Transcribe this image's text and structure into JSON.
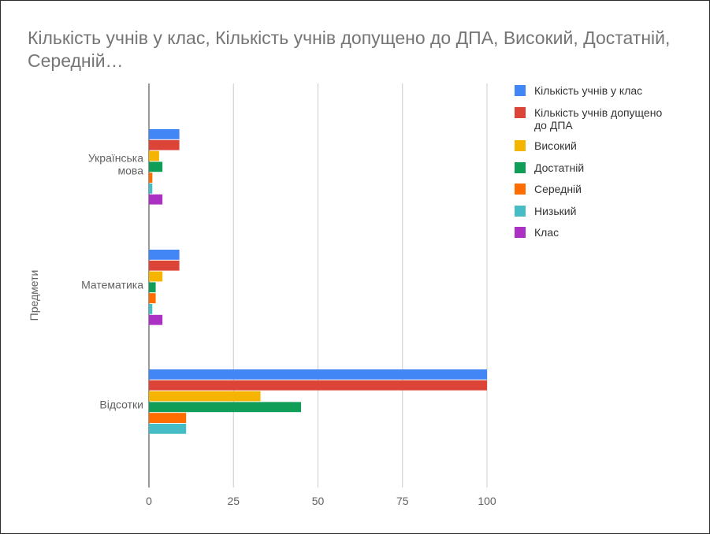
{
  "chart_data": {
    "type": "bar",
    "orientation": "horizontal",
    "title": "Кількість учнів у клас, Кількість учнів допущено до ДПА,  Високий, Достатній,  Середній…",
    "ylabel": "Предмети",
    "xlabel": "",
    "xlim": [
      0,
      100
    ],
    "x_ticks": [
      "0",
      "25",
      "50",
      "75",
      "100"
    ],
    "grid": true,
    "legend_position": "right",
    "categories": [
      [
        "Українська",
        "мова"
      ],
      [
        "Математика"
      ],
      [
        "Відсотки"
      ]
    ],
    "series": [
      {
        "name": "Кількість учнів у клас",
        "color": "#4285f4",
        "values": [
          9,
          9,
          100
        ]
      },
      {
        "name": "Кількість учнів допущено до ДПА",
        "color": "#db4437",
        "values": [
          9,
          9,
          100
        ]
      },
      {
        "name": " Високий",
        "color": "#f4b400",
        "values": [
          3,
          4,
          33
        ]
      },
      {
        "name": "Достатній",
        "color": "#0f9d58",
        "values": [
          4,
          2,
          45
        ]
      },
      {
        "name": " Середній",
        "color": "#ff6d00",
        "values": [
          1,
          2,
          11
        ]
      },
      {
        "name": " Низький",
        "color": "#46bdc6",
        "values": [
          1,
          1,
          11
        ]
      },
      {
        "name": "Клас",
        "color": "#ab30c4",
        "values": [
          4,
          4,
          0
        ]
      }
    ]
  }
}
